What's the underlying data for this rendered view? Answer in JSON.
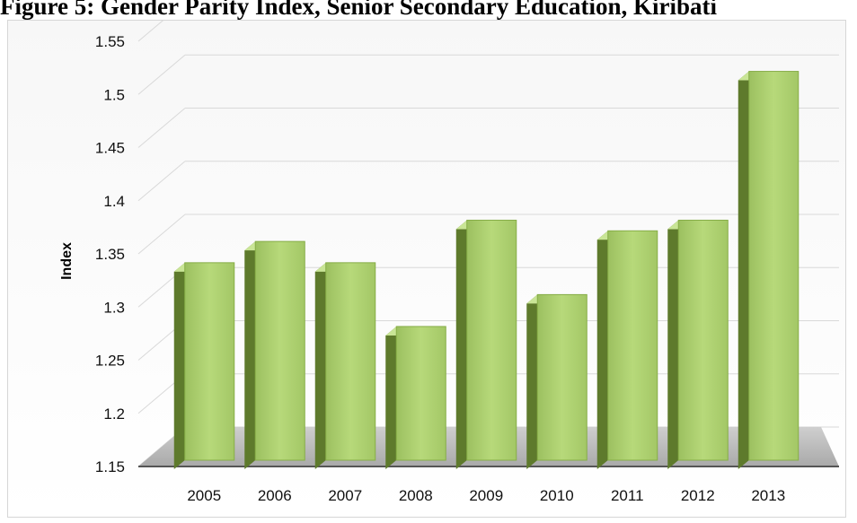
{
  "figure": {
    "title": "Figure 5:  Gender Parity Index, Senior Secondary Education, Kiribati"
  },
  "chart_data": {
    "type": "bar",
    "title": "",
    "xlabel": "",
    "ylabel": "Index",
    "categories": [
      "2005",
      "2006",
      "2007",
      "2008",
      "2009",
      "2010",
      "2011",
      "2012",
      "2013"
    ],
    "values": [
      1.34,
      1.36,
      1.34,
      1.28,
      1.38,
      1.31,
      1.37,
      1.38,
      1.52
    ],
    "ylim": [
      1.15,
      1.55
    ],
    "yticks": [
      "1.15",
      "1.2",
      "1.25",
      "1.3",
      "1.35",
      "1.4",
      "1.45",
      "1.5",
      "1.55"
    ],
    "grid": true,
    "legend": "none",
    "style": "3d-column",
    "colors": {
      "bar_front": "#a9cc6f",
      "bar_side": "#5e7a2c",
      "bar_top": "#c9e596",
      "floor": "#b9b9b9",
      "gridline": "#d9d9d9"
    }
  }
}
